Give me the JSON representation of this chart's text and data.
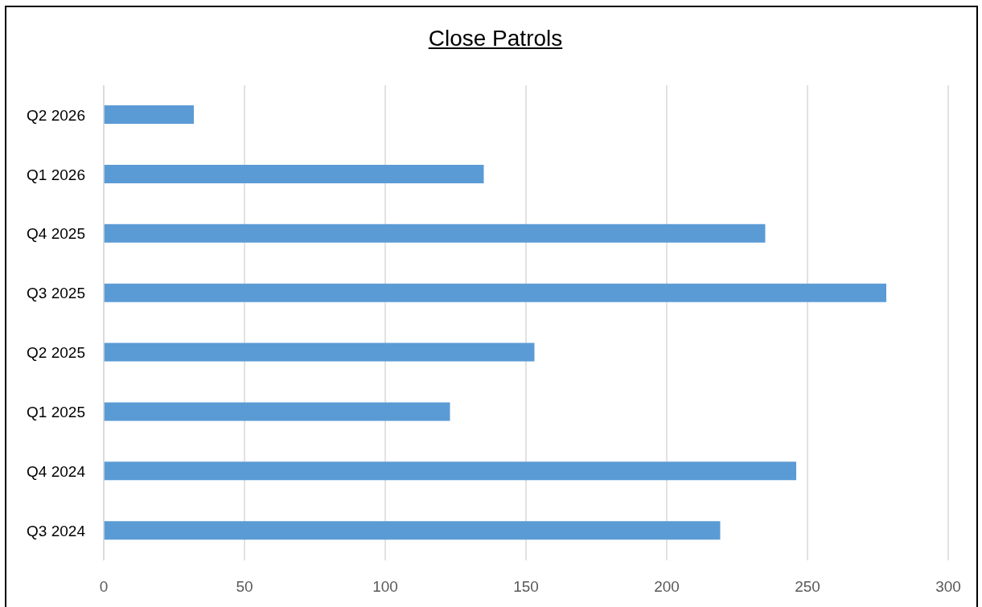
{
  "chart_data": {
    "type": "bar",
    "orientation": "horizontal",
    "title": "Close Patrols",
    "categories": [
      "Q2 2026",
      "Q1 2026",
      "Q4 2025",
      "Q3 2025",
      "Q2 2025",
      "Q1 2025",
      "Q4 2024",
      "Q3 2024"
    ],
    "values": [
      32,
      135,
      235,
      278,
      153,
      123,
      246,
      219
    ],
    "color": "#5b9bd5",
    "xlim": [
      0,
      300
    ],
    "xticks": [
      0,
      50,
      100,
      150,
      200,
      250,
      300
    ],
    "grid": "x"
  }
}
